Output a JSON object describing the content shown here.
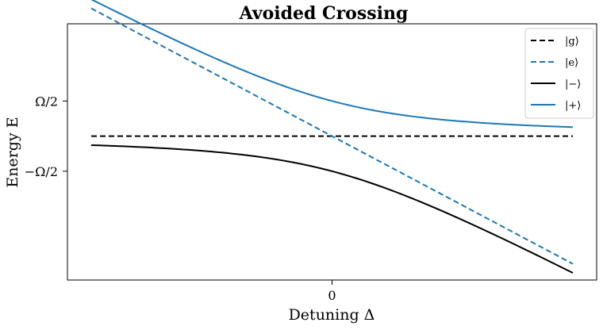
{
  "chart_data": {
    "type": "line",
    "title": "Avoided Crossing",
    "xlabel": "Detuning Δ",
    "ylabel": "Energy E",
    "xlim": [
      -2.0,
      2.0
    ],
    "ylim": [
      -2.05,
      1.6
    ],
    "grid": false,
    "legend_position": "top-right",
    "x_ticks": [
      {
        "value": 0,
        "label": "0"
      }
    ],
    "y_ticks": [
      {
        "value": 0.5,
        "label": "Ω/2"
      },
      {
        "value": -0.5,
        "label": "−Ω/2"
      }
    ],
    "omega": 1.0,
    "series": [
      {
        "name": "|g⟩",
        "formula": "g",
        "color": "#000000",
        "dash": true
      },
      {
        "name": "|e⟩",
        "formula": "e",
        "color": "#1f77b4",
        "dash": true
      },
      {
        "name": "|−⟩",
        "formula": "minus",
        "color": "#000000",
        "dash": false
      },
      {
        "name": "|+⟩",
        "formula": "plus",
        "color": "#1f77b4",
        "dash": false
      }
    ]
  }
}
